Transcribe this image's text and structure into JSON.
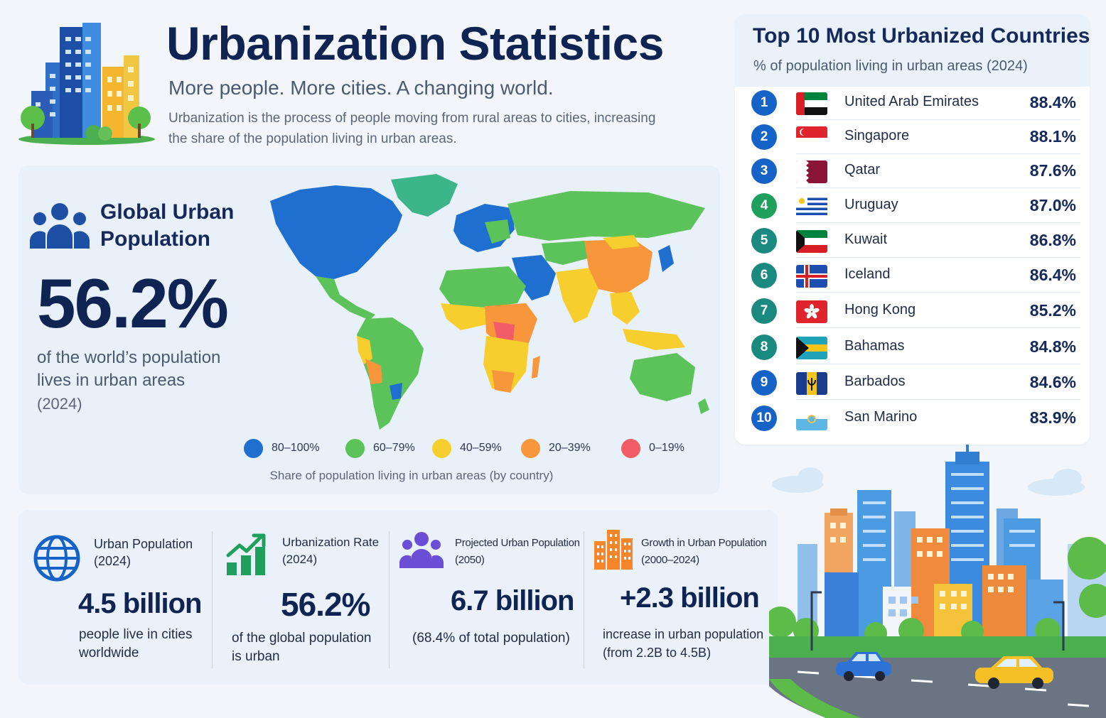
{
  "header": {
    "title": "Urbanization Statistics",
    "subtitle": "More people. More cities. A changing world.",
    "description": "Urbanization is the process of people moving from rural areas to cities, increasing the share of the population living in urban areas."
  },
  "global": {
    "title": "Global Urban Population",
    "value": "56.2%",
    "text": "of the world’s population lives in urban areas",
    "year": "(2024)"
  },
  "map": {
    "legend": [
      {
        "label": "80–100%",
        "color": "#1f6fd1"
      },
      {
        "label": "60–79%",
        "color": "#5cc25a"
      },
      {
        "label": "40–59%",
        "color": "#f6cf2f"
      },
      {
        "label": "20–39%",
        "color": "#f7963a"
      },
      {
        "label": "0–19%",
        "color": "#f25c66"
      }
    ],
    "caption": "Share of population living in urban areas (by country)"
  },
  "top10": {
    "title": "Top 10 Most Urbanized Countries",
    "subtitle": "% of population living in urban areas (2024)",
    "rows": [
      {
        "rank": "1",
        "country": "United Arab Emirates",
        "pct": "88.4%",
        "color": "#1663c7"
      },
      {
        "rank": "2",
        "country": "Singapore",
        "pct": "88.1%",
        "color": "#1663c7"
      },
      {
        "rank": "3",
        "country": "Qatar",
        "pct": "87.6%",
        "color": "#1663c7"
      },
      {
        "rank": "4",
        "country": "Uruguay",
        "pct": "87.0%",
        "color": "#1fa05c"
      },
      {
        "rank": "5",
        "country": "Kuwait",
        "pct": "86.8%",
        "color": "#1a8a80"
      },
      {
        "rank": "6",
        "country": "Iceland",
        "pct": "86.4%",
        "color": "#1a8a80"
      },
      {
        "rank": "7",
        "country": "Hong Kong",
        "pct": "85.2%",
        "color": "#1a8a80"
      },
      {
        "rank": "8",
        "country": "Bahamas",
        "pct": "84.8%",
        "color": "#1a8a80"
      },
      {
        "rank": "9",
        "country": "Barbados",
        "pct": "84.6%",
        "color": "#1663c7"
      },
      {
        "rank": "10",
        "country": "San Marino",
        "pct": "83.9%",
        "color": "#1663c7"
      }
    ]
  },
  "stats": [
    {
      "title": "Urban Population (2024)",
      "value": "4.5 billion",
      "text": "people live in cities worldwide",
      "icon": "globe-icon",
      "color": "#1663c7"
    },
    {
      "title": "Urbanization Rate (2024)",
      "value": "56.2%",
      "text": "of the global population is urban",
      "icon": "growth-chart-icon",
      "color": "#1fa05c"
    },
    {
      "title": "Projected Urban Population (2050)",
      "value": "6.7 billion",
      "text": "(68.4% of total population)",
      "icon": "people-group-icon",
      "color": "#6a4fd6"
    },
    {
      "title": "Growth in Urban Population (2000–2024)",
      "value": "+2.3 billion",
      "text": "increase in urban population (from 2.2B to 4.5B)",
      "icon": "buildings-icon",
      "color": "#f7862a"
    }
  ]
}
